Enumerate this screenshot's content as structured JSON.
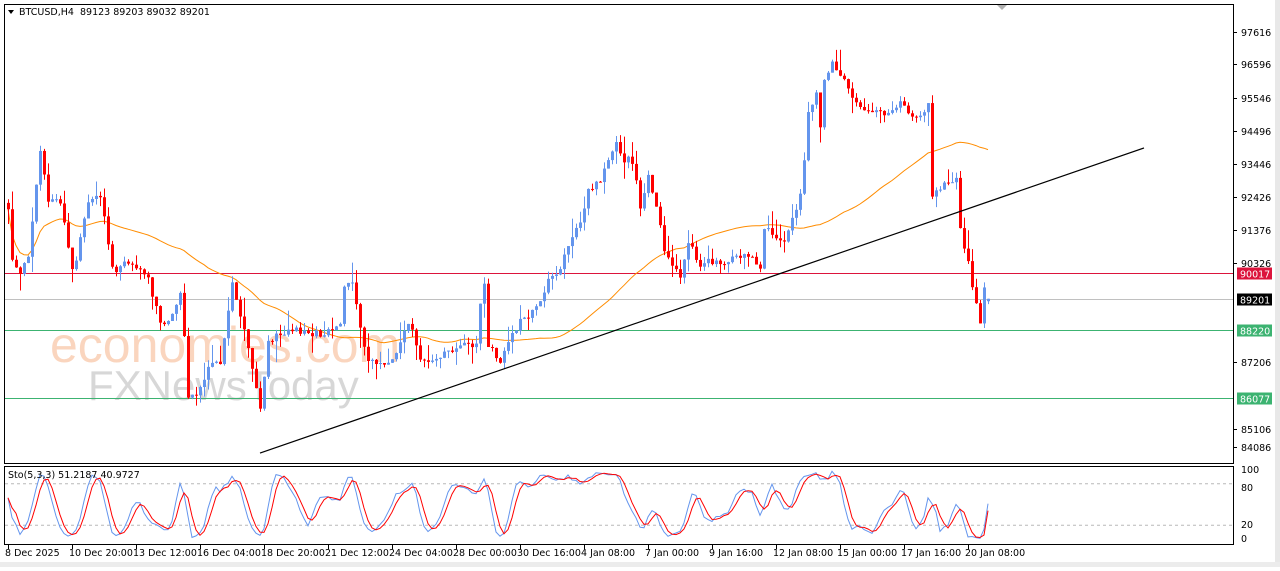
{
  "header": {
    "symbol_label": "BTCUSD,H4",
    "ohlc_text": "89123 89203 89032 89201"
  },
  "chart_data": {
    "type": "candlestick",
    "symbol": "BTCUSD",
    "timeframe": "H4",
    "ohlc_last": {
      "open": 89123,
      "high": 89203,
      "low": 89032,
      "close": 89201
    },
    "bar_count": 246,
    "close_path": [
      [
        0,
        92000
      ],
      [
        1,
        90423
      ],
      [
        3,
        90107
      ],
      [
        5,
        90423
      ],
      [
        8,
        93894
      ],
      [
        10,
        92316
      ],
      [
        13,
        92316
      ],
      [
        16,
        90107
      ],
      [
        17,
        90423
      ],
      [
        20,
        92316
      ],
      [
        23,
        92474
      ],
      [
        26,
        90107
      ],
      [
        29,
        90265
      ],
      [
        33,
        90107
      ],
      [
        35,
        89792
      ],
      [
        38,
        88530
      ],
      [
        40,
        88372
      ],
      [
        43,
        89476
      ],
      [
        44,
        87899
      ],
      [
        45,
        86006
      ],
      [
        48,
        86322
      ],
      [
        50,
        86953
      ],
      [
        53,
        87268
      ],
      [
        56,
        89634
      ],
      [
        57,
        89161
      ],
      [
        59,
        88215
      ],
      [
        62,
        86322
      ],
      [
        63,
        85690
      ],
      [
        65,
        87899
      ],
      [
        69,
        88057
      ],
      [
        73,
        88215
      ],
      [
        78,
        88057
      ],
      [
        80,
        88215
      ],
      [
        83,
        88530
      ],
      [
        84,
        89476
      ],
      [
        86,
        89792
      ],
      [
        88,
        88215
      ],
      [
        90,
        87268
      ],
      [
        94,
        87110
      ],
      [
        97,
        87426
      ],
      [
        100,
        88530
      ],
      [
        103,
        87268
      ],
      [
        108,
        87426
      ],
      [
        113,
        87742
      ],
      [
        117,
        87742
      ],
      [
        118,
        89161
      ],
      [
        119,
        89634
      ],
      [
        120,
        87742
      ],
      [
        123,
        87268
      ],
      [
        125,
        87899
      ],
      [
        128,
        88530
      ],
      [
        130,
        88687
      ],
      [
        133,
        89161
      ],
      [
        135,
        89792
      ],
      [
        138,
        90107
      ],
      [
        140,
        90896
      ],
      [
        143,
        91527
      ],
      [
        145,
        92632
      ],
      [
        148,
        92947
      ],
      [
        150,
        93578
      ],
      [
        152,
        94209
      ],
      [
        154,
        93578
      ],
      [
        156,
        93578
      ],
      [
        158,
        92158
      ],
      [
        160,
        93105
      ],
      [
        162,
        92158
      ],
      [
        164,
        90738
      ],
      [
        168,
        89950
      ],
      [
        170,
        91054
      ],
      [
        173,
        90107
      ],
      [
        175,
        90423
      ],
      [
        178,
        90265
      ],
      [
        182,
        90486
      ],
      [
        185,
        90581
      ],
      [
        188,
        90265
      ],
      [
        189,
        91527
      ],
      [
        192,
        91054
      ],
      [
        194,
        90896
      ],
      [
        197,
        92000
      ],
      [
        198,
        92474
      ],
      [
        199,
        93578
      ],
      [
        200,
        95156
      ],
      [
        202,
        95629
      ],
      [
        203,
        94682
      ],
      [
        204,
        96102
      ],
      [
        206,
        96575
      ],
      [
        207,
        96417
      ],
      [
        209,
        96102
      ],
      [
        211,
        95471
      ],
      [
        213,
        95313
      ],
      [
        216,
        95156
      ],
      [
        218,
        94998
      ],
      [
        220,
        94998
      ],
      [
        223,
        95313
      ],
      [
        227,
        94998
      ],
      [
        229,
        94998
      ],
      [
        230,
        95313
      ],
      [
        231,
        92474
      ],
      [
        233,
        92632
      ],
      [
        234,
        92789
      ],
      [
        237,
        92947
      ],
      [
        238,
        91369
      ],
      [
        239,
        90896
      ],
      [
        240,
        90265
      ],
      [
        242,
        89003
      ],
      [
        243,
        88372
      ],
      [
        244,
        89476
      ],
      [
        245,
        89224
      ]
    ],
    "price_axis_ticks": [
      97616,
      96596,
      95546,
      94496,
      93446,
      92426,
      91376,
      90326,
      87206,
      85106,
      84086
    ],
    "price_range": [
      84086,
      97616
    ],
    "moving_average": {
      "color": "#ff8c00",
      "period": 50
    },
    "trendline": {
      "from": [
        63,
        84334
      ],
      "to": [
        284,
        93957
      ],
      "color": "#000000"
    },
    "horizontal_levels": [
      {
        "price": 90017,
        "label": "90017",
        "color": "#dc143c"
      },
      {
        "price": 89201,
        "label": "89201",
        "color": "#000000",
        "line_color": "#c0c0c0"
      },
      {
        "price": 88220,
        "label": "88220",
        "color": "#3cb371"
      },
      {
        "price": 86077,
        "label": "86077",
        "color": "#3cb371"
      }
    ],
    "colors": {
      "bull": "#6495ed",
      "bear": "#ff0000"
    },
    "time_labels": [
      {
        "bar": 0,
        "label": "8 Dec 2025"
      },
      {
        "bar": 16,
        "label": "10 Dec 20:00"
      },
      {
        "bar": 32,
        "label": "13 Dec 12:00"
      },
      {
        "bar": 48,
        "label": "16 Dec 04:00"
      },
      {
        "bar": 64,
        "label": "18 Dec 20:00"
      },
      {
        "bar": 80,
        "label": "21 Dec 12:00"
      },
      {
        "bar": 96,
        "label": "24 Dec 04:00"
      },
      {
        "bar": 112,
        "label": "28 Dec 00:00"
      },
      {
        "bar": 128,
        "label": "30 Dec 16:00"
      },
      {
        "bar": 144,
        "label": "4 Jan 08:00"
      },
      {
        "bar": 160,
        "label": "7 Jan 00:00"
      },
      {
        "bar": 176,
        "label": "9 Jan 16:00"
      },
      {
        "bar": 192,
        "label": "12 Jan 08:00"
      },
      {
        "bar": 208,
        "label": "15 Jan 00:00"
      },
      {
        "bar": 224,
        "label": "17 Jan 16:00"
      },
      {
        "bar": 240,
        "label": "20 Jan 08:00"
      }
    ],
    "stochastic": {
      "label": "Sto(5,3,3) 51.2187 40.9727",
      "params": [
        5,
        3,
        3
      ],
      "main_value": 51.2187,
      "signal_value": 40.9727,
      "levels": [
        80,
        20
      ],
      "axis_ticks": [
        "100",
        "80",
        "20",
        "0"
      ],
      "main_color": "#6495ed",
      "signal_color": "#ff0000"
    }
  },
  "watermark": {
    "line1": "economies.com",
    "line2": "FXNewsToday"
  }
}
